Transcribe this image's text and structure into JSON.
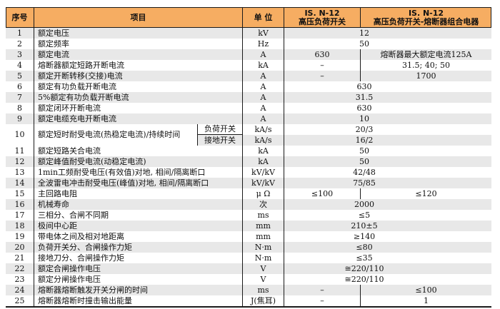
{
  "table": {
    "colors": {
      "header_bg": "#F6AD62",
      "stripe_gray": "#E8E8E8",
      "stripe_white": "#FFFFFF",
      "border": "#1A1A1A",
      "text": "#111111"
    },
    "header": {
      "col_num": "序号",
      "col_item": "项目",
      "col_unit": "单 位",
      "col_switch_line1": "IS. N-12",
      "col_switch_line2": "高压负荷开关",
      "col_combo_line1": "IS. N-12",
      "col_combo_line2": "高压负荷开关-熔断器组合电器"
    },
    "rows": [
      {
        "num": "1",
        "item": "额定电压",
        "unit": "kV",
        "span": "12",
        "shade": "gray"
      },
      {
        "num": "2",
        "item": "额定频率",
        "unit": "Hz",
        "span": "50",
        "shade": "white"
      },
      {
        "num": "3",
        "item": "额定电流",
        "unit": "A",
        "v1": "630",
        "v2": "熔断器最大额定电流125A",
        "shade": "gray"
      },
      {
        "num": "4",
        "item": "熔断器额定短路开断电流",
        "unit": "kA",
        "v1": "–",
        "v2": "31.5; 40; 50",
        "shade": "white"
      },
      {
        "num": "5",
        "item": "额定开断转移(交接)电流",
        "unit": "A",
        "v1": "–",
        "v2": "1700",
        "shade": "gray"
      },
      {
        "num": "6",
        "item": "额定有功负载开断电流",
        "unit": "A",
        "span": "630",
        "shade": "white"
      },
      {
        "num": "7",
        "item": "5%额定有功负载开断电流",
        "unit": "A",
        "span": "31.5",
        "shade": "gray"
      },
      {
        "num": "8",
        "item": "额定闭环开断电流",
        "unit": "A",
        "span": "630",
        "shade": "white"
      },
      {
        "num": "9",
        "item": "额定电缆充电开断电流",
        "unit": "A",
        "span": "10",
        "shade": "gray"
      },
      {
        "num": "10",
        "item": "额定短时耐受电流(热稳定电流)/持续时间",
        "subrows": [
          {
            "sub": "负荷开关",
            "unit": "kA/s",
            "span": "20/3",
            "shade": "white"
          },
          {
            "sub": "接地开关",
            "unit": "kA/s",
            "span": "16/2",
            "shade": "gray"
          }
        ]
      },
      {
        "num": "11",
        "item": "额定短路关合电流",
        "unit": "kA",
        "span": "50",
        "shade": "white"
      },
      {
        "num": "12",
        "item": "额定峰值耐受电流(动稳定电流)",
        "unit": "kA",
        "span": "50",
        "shade": "gray"
      },
      {
        "num": "13",
        "item": "1min工频耐受电压(有效值)对地, 相间/隔离断口",
        "unit": "kV/kV",
        "span": "42/48",
        "shade": "white"
      },
      {
        "num": "14",
        "item": "全波雷电冲击耐受电压(峰值)对地, 相间/隔离断口",
        "unit": "kV/kV",
        "span": "75/85",
        "shade": "gray"
      },
      {
        "num": "15",
        "item": "主回路电阻",
        "unit": "μ Ω",
        "v1": "≤100",
        "v2": "≤120",
        "shade": "white"
      },
      {
        "num": "16",
        "item": "机械寿命",
        "unit": "次",
        "span": "2000",
        "shade": "gray"
      },
      {
        "num": "17",
        "item": "三相分、合闸不同期",
        "unit": "ms",
        "span": "≤5",
        "shade": "white"
      },
      {
        "num": "18",
        "item": "极间中心距",
        "unit": "mm",
        "span": "210±5",
        "shade": "gray"
      },
      {
        "num": "19",
        "item": "带电体之间及相对地距离",
        "unit": "mm",
        "span": "≥140",
        "shade": "white"
      },
      {
        "num": "20",
        "item": "负荷开关分、合闸操作力矩",
        "unit": "N·m",
        "span": "≤80",
        "shade": "gray"
      },
      {
        "num": "21",
        "item": "接地刀分、合闸操作力矩",
        "unit": "N·m",
        "span": "≤35",
        "shade": "white"
      },
      {
        "num": "22",
        "item": "额定合闸操作电压",
        "unit": "V",
        "span": "≅220/110",
        "shade": "gray"
      },
      {
        "num": "23",
        "item": "额定分闸操作电压",
        "unit": "V",
        "span": "≅220/110",
        "shade": "white"
      },
      {
        "num": "24",
        "item": "熔断器熔断触发开关分闸的时间",
        "unit": "ms",
        "v1": "–",
        "v2": "≤100",
        "shade": "gray"
      },
      {
        "num": "25",
        "item": "熔断器熔断时撞击输出能量",
        "unit": "J(焦耳)",
        "v1": "–",
        "v2": "1",
        "shade": "white"
      }
    ]
  }
}
